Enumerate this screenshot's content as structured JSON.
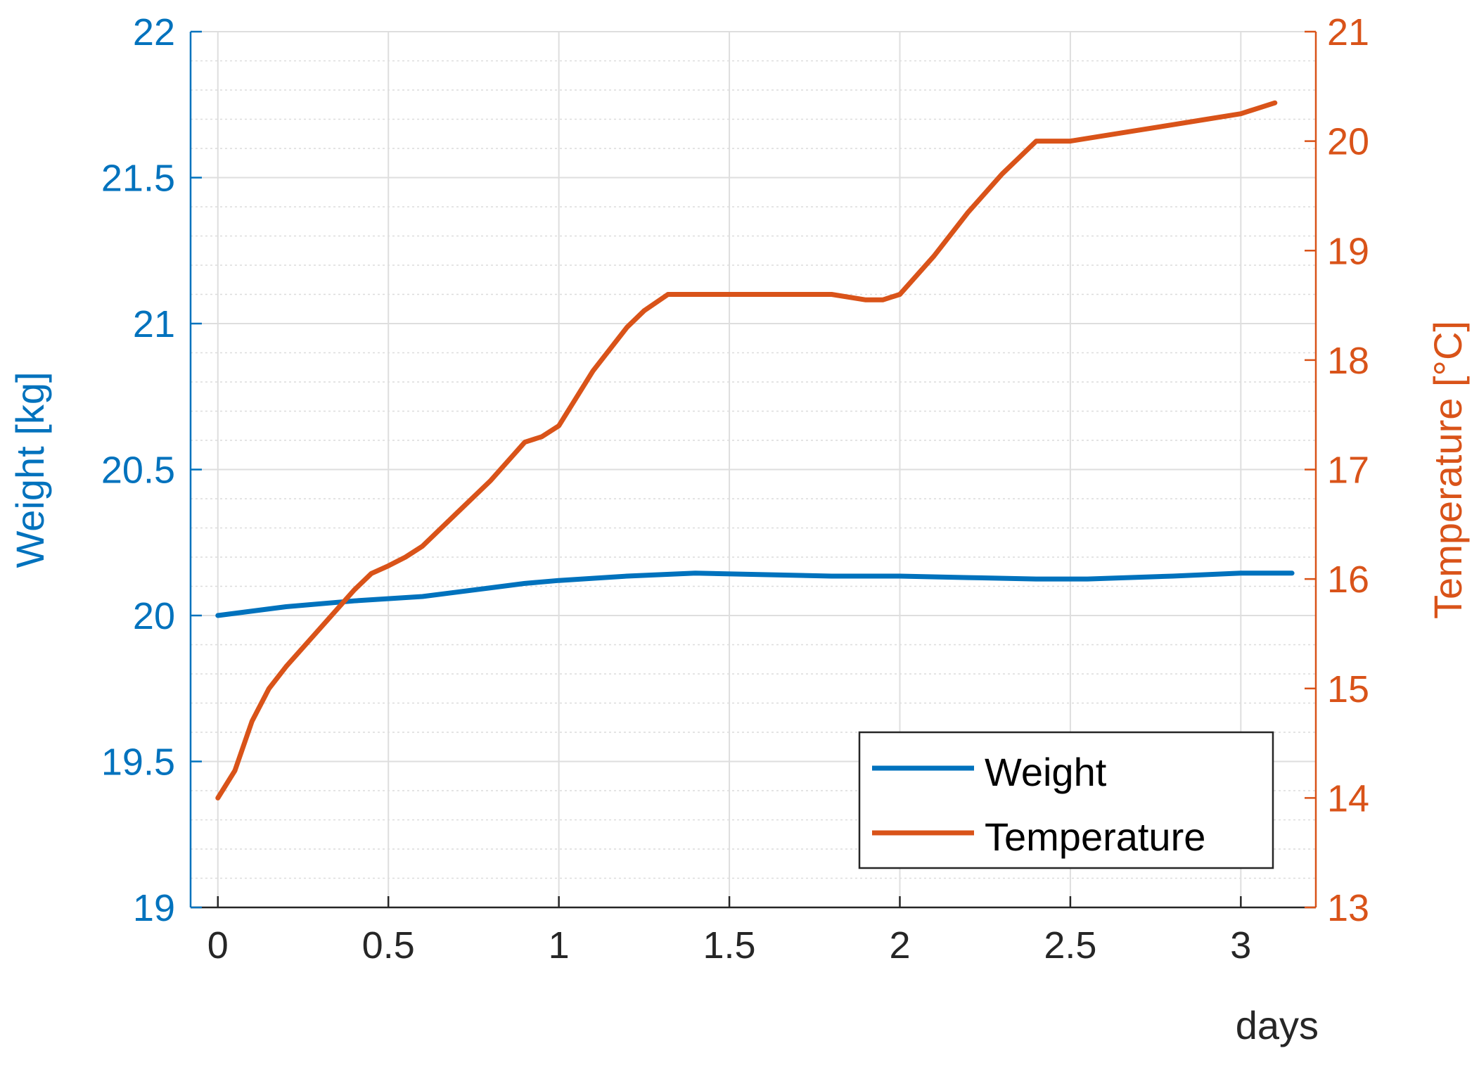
{
  "chart_data": {
    "type": "line",
    "title": "",
    "xlabel": "days",
    "xlim": [
      -0.08,
      3.22
    ],
    "xticks": [
      "0",
      "0.5",
      "1",
      "1.5",
      "2",
      "2.5",
      "3"
    ],
    "xtick_values": [
      0,
      0.5,
      1,
      1.5,
      2,
      2.5,
      3
    ],
    "grid": true,
    "minor_grid": true,
    "legend_position": "bottom-right",
    "y_left": {
      "label": "Weight [kg]",
      "lim": [
        19,
        22
      ],
      "ticks": [
        "19",
        "19.5",
        "20",
        "20.5",
        "21",
        "21.5",
        "22"
      ],
      "tick_values": [
        19,
        19.5,
        20,
        20.5,
        21,
        21.5,
        22
      ],
      "color": "#0072BD"
    },
    "y_right": {
      "label": "Temperature [°C]",
      "lim": [
        13,
        21
      ],
      "ticks": [
        "13",
        "14",
        "15",
        "16",
        "17",
        "18",
        "19",
        "20",
        "21"
      ],
      "tick_values": [
        13,
        14,
        15,
        16,
        17,
        18,
        19,
        20,
        21
      ],
      "color": "#D95319"
    },
    "series": [
      {
        "name": "Weight",
        "axis": "left",
        "color": "#0072BD",
        "x": [
          0,
          0.2,
          0.4,
          0.6,
          0.7,
          0.8,
          0.9,
          1.0,
          1.2,
          1.4,
          1.6,
          1.8,
          2.0,
          2.2,
          2.4,
          2.55,
          2.8,
          3.0,
          3.15
        ],
        "y": [
          20.0,
          20.03,
          20.05,
          20.065,
          20.08,
          20.095,
          20.11,
          20.12,
          20.135,
          20.145,
          20.14,
          20.135,
          20.135,
          20.13,
          20.125,
          20.125,
          20.135,
          20.145,
          20.145
        ]
      },
      {
        "name": "Temperature",
        "axis": "right",
        "color": "#D95319",
        "x": [
          0,
          0.05,
          0.1,
          0.15,
          0.2,
          0.3,
          0.4,
          0.45,
          0.5,
          0.55,
          0.6,
          0.7,
          0.8,
          0.9,
          0.95,
          1.0,
          1.1,
          1.2,
          1.25,
          1.32,
          1.4,
          1.5,
          1.6,
          1.7,
          1.8,
          1.9,
          1.95,
          2.0,
          2.1,
          2.2,
          2.3,
          2.35,
          2.4,
          2.5,
          2.6,
          2.7,
          2.8,
          2.9,
          3.0,
          3.05,
          3.1
        ],
        "y": [
          14.0,
          14.25,
          14.7,
          15.0,
          15.2,
          15.55,
          15.9,
          16.05,
          16.12,
          16.2,
          16.3,
          16.6,
          16.9,
          17.25,
          17.3,
          17.4,
          17.9,
          18.3,
          18.45,
          18.6,
          18.6,
          18.6,
          18.6,
          18.6,
          18.6,
          18.55,
          18.55,
          18.6,
          18.95,
          19.35,
          19.7,
          19.85,
          20.0,
          20.0,
          20.05,
          20.1,
          20.15,
          20.2,
          20.25,
          20.3,
          20.35
        ]
      }
    ]
  }
}
